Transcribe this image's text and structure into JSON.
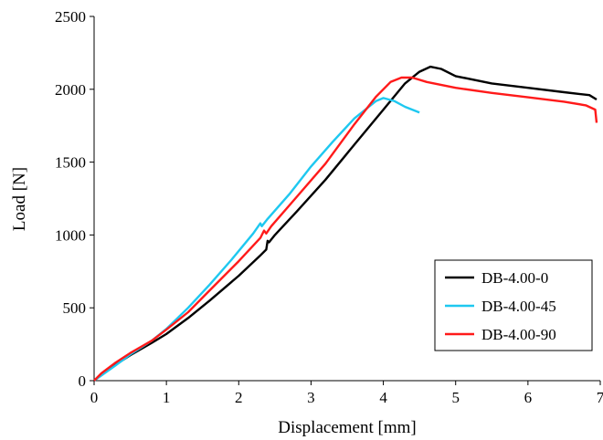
{
  "chart_data": {
    "type": "line",
    "xlabel": "Displacement  [mm]",
    "ylabel": "Load [N]",
    "xlim": [
      0,
      7
    ],
    "ylim": [
      0,
      2500
    ],
    "xticks": [
      0,
      1,
      2,
      3,
      4,
      5,
      6,
      7
    ],
    "yticks": [
      0,
      500,
      1000,
      1500,
      2000,
      2500
    ],
    "xtick_labels": [
      "0",
      "1",
      "2",
      "3",
      "4",
      "5",
      "6",
      "7"
    ],
    "ytick_labels": [
      "0",
      "500",
      "1000",
      "1500",
      "2000",
      "2500"
    ],
    "grid": false,
    "legend_position": "bottom-right",
    "series": [
      {
        "name": "DB-4.00-0",
        "color": "#000000",
        "points": [
          [
            0,
            0
          ],
          [
            0.1,
            40
          ],
          [
            0.3,
            110
          ],
          [
            0.5,
            175
          ],
          [
            0.8,
            260
          ],
          [
            1,
            320
          ],
          [
            1.3,
            430
          ],
          [
            1.6,
            550
          ],
          [
            2,
            720
          ],
          [
            2.3,
            860
          ],
          [
            2.38,
            900
          ],
          [
            2.4,
            960
          ],
          [
            2.42,
            950
          ],
          [
            2.5,
            1000
          ],
          [
            2.8,
            1160
          ],
          [
            3.2,
            1380
          ],
          [
            3.6,
            1620
          ],
          [
            4,
            1860
          ],
          [
            4.3,
            2040
          ],
          [
            4.5,
            2120
          ],
          [
            4.65,
            2155
          ],
          [
            4.8,
            2140
          ],
          [
            5,
            2090
          ],
          [
            5.5,
            2040
          ],
          [
            6,
            2010
          ],
          [
            6.5,
            1980
          ],
          [
            6.85,
            1960
          ],
          [
            6.95,
            1930
          ]
        ]
      },
      {
        "name": "DB-4.00-45",
        "color": "#1EC8F0",
        "points": [
          [
            0,
            0
          ],
          [
            0.1,
            35
          ],
          [
            0.3,
            105
          ],
          [
            0.5,
            180
          ],
          [
            0.8,
            275
          ],
          [
            1,
            355
          ],
          [
            1.3,
            500
          ],
          [
            1.6,
            660
          ],
          [
            1.9,
            830
          ],
          [
            2.2,
            1010
          ],
          [
            2.3,
            1080
          ],
          [
            2.32,
            1060
          ],
          [
            2.4,
            1110
          ],
          [
            2.7,
            1280
          ],
          [
            3,
            1470
          ],
          [
            3.3,
            1640
          ],
          [
            3.6,
            1800
          ],
          [
            3.9,
            1920
          ],
          [
            4,
            1940
          ],
          [
            4.15,
            1920
          ],
          [
            4.3,
            1880
          ],
          [
            4.5,
            1840
          ]
        ]
      },
      {
        "name": "DB-4.00-90",
        "color": "#FF1A1A",
        "points": [
          [
            0,
            0
          ],
          [
            0.1,
            50
          ],
          [
            0.3,
            125
          ],
          [
            0.5,
            190
          ],
          [
            0.8,
            275
          ],
          [
            1,
            350
          ],
          [
            1.3,
            470
          ],
          [
            1.6,
            620
          ],
          [
            2,
            820
          ],
          [
            2.3,
            980
          ],
          [
            2.35,
            1030
          ],
          [
            2.38,
            1010
          ],
          [
            2.45,
            1060
          ],
          [
            2.8,
            1260
          ],
          [
            3.2,
            1490
          ],
          [
            3.6,
            1760
          ],
          [
            3.9,
            1950
          ],
          [
            4.1,
            2050
          ],
          [
            4.25,
            2080
          ],
          [
            4.4,
            2080
          ],
          [
            4.6,
            2050
          ],
          [
            5,
            2010
          ],
          [
            5.5,
            1975
          ],
          [
            6,
            1945
          ],
          [
            6.5,
            1915
          ],
          [
            6.8,
            1890
          ],
          [
            6.93,
            1860
          ],
          [
            6.95,
            1770
          ]
        ]
      }
    ]
  }
}
